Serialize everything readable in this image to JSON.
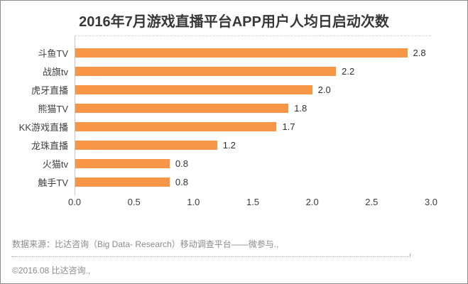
{
  "title": "2016年7月游戏直播平台APP用户人均日启动次数",
  "chart_data": {
    "type": "bar",
    "orientation": "horizontal",
    "title": "2016年7月游戏直播平台APP用户人均日启动次数",
    "categories": [
      "斗鱼TV",
      "战旗tv",
      "虎牙直播",
      "熊猫TV",
      "KK游戏直播",
      "龙珠直播",
      "火猫tv",
      "触手TV"
    ],
    "values": [
      2.8,
      2.2,
      2.0,
      1.8,
      1.7,
      1.2,
      0.8,
      0.8
    ],
    "value_labels": [
      "2.8",
      "2.2",
      "2.0",
      "1.8",
      "1.7",
      "1.2",
      "0.8",
      "0.8"
    ],
    "xlabel": "",
    "ylabel": "",
    "xlim": [
      0,
      3.0
    ],
    "x_ticks": [
      "0.0",
      "0.5",
      "1.0",
      "1.5",
      "2.0",
      "2.5",
      "3.0"
    ],
    "grid": false,
    "legend": false,
    "bar_color": "#f79646"
  },
  "footer": {
    "source": "数据来源：比达咨询（Big Data- Research）移动调查平台——微参与.,",
    "copyright": "©2016.08    比达咨询.,"
  }
}
